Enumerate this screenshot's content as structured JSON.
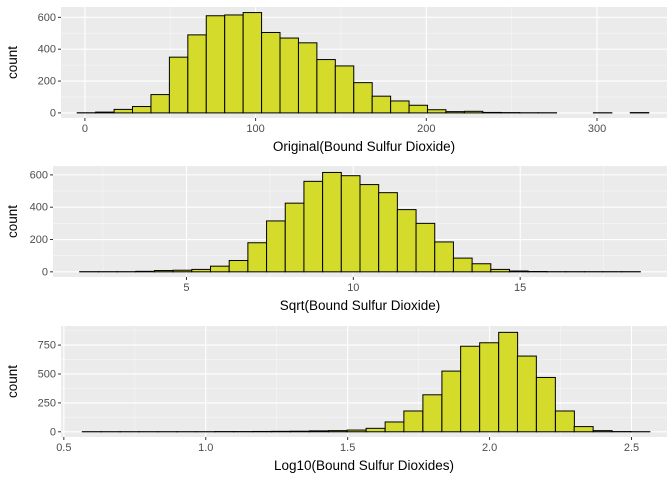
{
  "chart_data": [
    {
      "type": "bar",
      "title": "",
      "xlabel": "Original(Bound Sulfur Dioxide)",
      "ylabel": "count",
      "xlim": [
        -14,
        341
      ],
      "ylim": [
        -32,
        665
      ],
      "xticks": [
        0,
        100,
        200,
        300
      ],
      "yticks": [
        0,
        200,
        400,
        600
      ],
      "grid": true,
      "bin_width": 10.8,
      "bin_starts": [
        -4.5,
        6.3,
        17.1,
        27.9,
        38.7,
        49.5,
        60.3,
        71.1,
        81.9,
        92.7,
        103.5,
        114.3,
        125.1,
        135.9,
        146.7,
        157.5,
        168.3,
        179.1,
        189.9,
        200.7,
        211.5,
        222.3,
        233.1,
        243.9,
        254.7,
        265.5,
        276.3,
        287.1,
        297.9,
        308.7,
        319.5
      ],
      "values": [
        1,
        5,
        22,
        40,
        115,
        350,
        490,
        610,
        615,
        630,
        505,
        470,
        440,
        335,
        295,
        190,
        105,
        75,
        48,
        20,
        8,
        10,
        3,
        2,
        1,
        1,
        0,
        0,
        1,
        0,
        2
      ],
      "fill": "#d4db2b",
      "stroke": "#000000",
      "panel_bg": "#ebebeb"
    },
    {
      "type": "bar",
      "title": "",
      "xlabel": "Sqrt(Bound Sulfur Dioxide)",
      "ylabel": "count",
      "xlim": [
        1.0,
        19.4
      ],
      "ylim": [
        -32,
        655
      ],
      "xticks": [
        5,
        10,
        15
      ],
      "yticks": [
        0,
        200,
        400,
        600
      ],
      "grid": true,
      "bin_width": 0.56,
      "bin_starts": [
        1.8,
        2.36,
        2.92,
        3.48,
        4.04,
        4.6,
        5.16,
        5.72,
        6.28,
        6.84,
        7.4,
        7.96,
        8.52,
        9.08,
        9.64,
        10.2,
        10.76,
        11.32,
        11.88,
        12.44,
        13.0,
        13.56,
        14.12,
        14.68,
        15.24,
        15.8,
        16.36,
        16.92,
        17.48,
        18.04
      ],
      "values": [
        1,
        1,
        1,
        3,
        8,
        10,
        15,
        35,
        70,
        180,
        315,
        425,
        560,
        615,
        595,
        540,
        490,
        385,
        300,
        185,
        85,
        50,
        15,
        5,
        2,
        1,
        1,
        1,
        1,
        1
      ],
      "fill": "#d4db2b",
      "stroke": "#000000",
      "panel_bg": "#ebebeb"
    },
    {
      "type": "bar",
      "title": "",
      "xlabel": "Log10(Bound Sulfur Dioxides)",
      "ylabel": "count",
      "xlim": [
        0.49,
        2.625
      ],
      "ylim": [
        -45,
        915
      ],
      "xticks": [
        0.5,
        1.0,
        1.5,
        2.0,
        2.5
      ],
      "xtick_labels": [
        "0.5",
        "1.0",
        "1.5",
        "2.0",
        "2.5"
      ],
      "yticks": [
        0,
        250,
        500,
        750
      ],
      "grid": true,
      "bin_width": 0.0667,
      "bin_starts": [
        0.565,
        0.632,
        0.698,
        0.765,
        0.832,
        0.898,
        0.965,
        1.032,
        1.098,
        1.165,
        1.232,
        1.298,
        1.365,
        1.432,
        1.498,
        1.565,
        1.632,
        1.698,
        1.765,
        1.832,
        1.898,
        1.965,
        2.032,
        2.098,
        2.165,
        2.232,
        2.298,
        2.365,
        2.432,
        2.498
      ],
      "values": [
        1,
        1,
        1,
        1,
        1,
        1,
        1,
        2,
        2,
        3,
        4,
        5,
        8,
        10,
        15,
        30,
        85,
        180,
        320,
        525,
        740,
        770,
        860,
        655,
        470,
        180,
        45,
        10,
        2,
        1
      ],
      "fill": "#d4db2b",
      "stroke": "#000000",
      "panel_bg": "#ebebeb"
    }
  ]
}
